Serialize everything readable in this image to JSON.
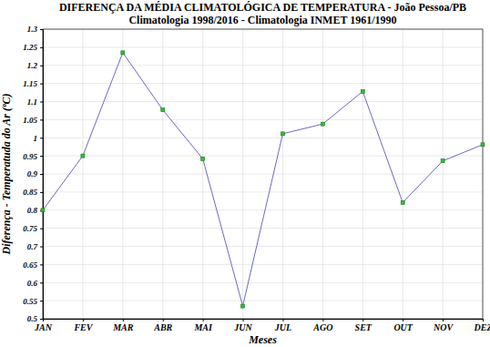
{
  "chart_data": {
    "type": "line",
    "title": "DIFERENÇA DA MÉDIA CLIMATOLÓGICA DE TEMPERATURA - João Pessoa/PB",
    "subtitle": "Climatologia 1998/2016 - Climatologia INMET 1961/1990",
    "x_label": "Meses",
    "y_label": "Diferença - Temperatuda do Ar (ºC)",
    "categories": [
      "JAN",
      "FEV",
      "MAR",
      "ABR",
      "MAI",
      "JUN",
      "JUL",
      "AGO",
      "SET",
      "OUT",
      "NOV",
      "DEZ"
    ],
    "values": [
      0.8,
      0.95,
      1.235,
      1.077,
      0.942,
      0.535,
      1.011,
      1.038,
      1.128,
      0.821,
      0.936,
      0.981
    ],
    "color": "#6b6bbf",
    "marker": "square",
    "ylim": [
      0.5,
      1.3
    ],
    "yticks": [
      0.5,
      0.55,
      0.6,
      0.65,
      0.7,
      0.75,
      0.8,
      0.85,
      0.9,
      0.95,
      1,
      1.05,
      1.1,
      1.15,
      1.2,
      1.25,
      1.3
    ],
    "grid": true
  }
}
